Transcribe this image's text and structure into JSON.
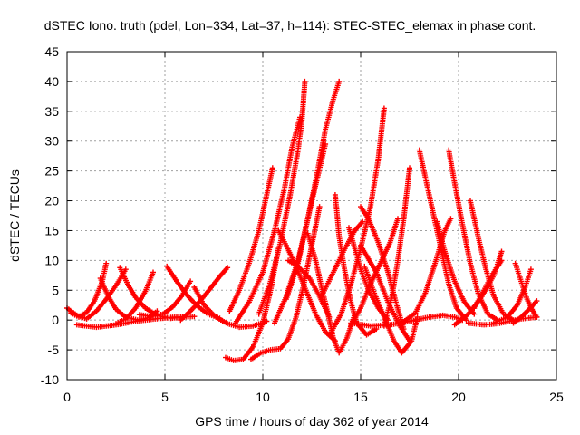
{
  "chart_data": {
    "type": "scatter",
    "title": "dSTEC Iono. truth (pdel, Lon=334, Lat=37, h=114): STEC-STEC_elemax in phase cont.",
    "xlabel": "GPS time / hours of day 362 of year 2014",
    "ylabel": "dSTEC  / TECUs",
    "xlim": [
      0,
      25
    ],
    "ylim": [
      -10,
      45
    ],
    "x_ticks": [
      "0",
      "5",
      "10",
      "15",
      "20",
      "25"
    ],
    "y_ticks": [
      "-10",
      "-5",
      "0",
      "5",
      "10",
      "15",
      "20",
      "25",
      "30",
      "35",
      "40",
      "45"
    ],
    "grid": true,
    "marker": "+",
    "color": "#ff0000",
    "series": [
      {
        "values": [
          [
            0.0,
            2.0
          ],
          [
            0.5,
            0.8
          ],
          [
            1.0,
            0.2
          ],
          [
            1.5,
            1.5
          ],
          [
            2.0,
            3.5
          ],
          [
            2.5,
            5.8
          ],
          [
            3.0,
            8.5
          ]
        ]
      },
      {
        "values": [
          [
            0.2,
            1.2
          ],
          [
            0.6,
            0.5
          ],
          [
            1.0,
            1.3
          ],
          [
            1.4,
            3.2
          ],
          [
            1.8,
            6.5
          ],
          [
            2.0,
            9.5
          ]
        ]
      },
      {
        "values": [
          [
            1.7,
            7.0
          ],
          [
            2.1,
            4.0
          ],
          [
            2.5,
            1.8
          ],
          [
            3.0,
            0.5
          ],
          [
            3.6,
            0.0
          ],
          [
            4.2,
            0.4
          ],
          [
            4.6,
            1.5
          ]
        ]
      },
      {
        "values": [
          [
            2.7,
            8.8
          ],
          [
            3.1,
            6.0
          ],
          [
            3.5,
            3.8
          ],
          [
            4.0,
            2.0
          ],
          [
            4.6,
            0.8
          ],
          [
            5.3,
            0.3
          ],
          [
            6.0,
            0.5
          ]
        ]
      },
      {
        "values": [
          [
            2.5,
            -0.6
          ],
          [
            3.0,
            0.2
          ],
          [
            3.5,
            2.0
          ],
          [
            4.0,
            4.8
          ],
          [
            4.4,
            8.0
          ]
        ]
      },
      {
        "values": [
          [
            3.7,
            0.9
          ],
          [
            4.3,
            0.6
          ],
          [
            4.9,
            1.0
          ],
          [
            5.4,
            2.2
          ],
          [
            5.9,
            4.2
          ],
          [
            6.3,
            6.5
          ]
        ]
      },
      {
        "values": [
          [
            5.1,
            9.0
          ],
          [
            5.6,
            6.5
          ],
          [
            6.1,
            4.3
          ],
          [
            6.6,
            2.5
          ],
          [
            7.2,
            1.0
          ],
          [
            7.8,
            0.3
          ]
        ]
      },
      {
        "values": [
          [
            5.8,
            0.0
          ],
          [
            6.3,
            1.5
          ],
          [
            6.8,
            3.2
          ],
          [
            7.3,
            5.2
          ],
          [
            7.8,
            7.3
          ],
          [
            8.2,
            8.8
          ]
        ]
      },
      {
        "values": [
          [
            0.5,
            -0.8
          ],
          [
            1.5,
            -1.2
          ],
          [
            2.5,
            -0.8
          ],
          [
            3.5,
            -0.2
          ],
          [
            4.5,
            0.2
          ],
          [
            5.5,
            0.5
          ],
          [
            6.5,
            0.6
          ]
        ]
      },
      {
        "values": [
          [
            6.5,
            5.5
          ],
          [
            7.0,
            2.5
          ],
          [
            7.6,
            0.5
          ],
          [
            8.2,
            -0.6
          ],
          [
            8.8,
            -1.2
          ],
          [
            9.5,
            -1.0
          ],
          [
            10.2,
            -0.2
          ]
        ]
      },
      {
        "values": [
          [
            8.1,
            -6.3
          ],
          [
            8.5,
            -6.8
          ],
          [
            9.0,
            -6.6
          ],
          [
            9.5,
            -4.5
          ],
          [
            10.0,
            -0.5
          ],
          [
            10.4,
            5.0
          ],
          [
            10.8,
            12.0
          ]
        ]
      },
      {
        "values": [
          [
            9.4,
            -6.6
          ],
          [
            9.9,
            -5.5
          ],
          [
            10.4,
            -5.0
          ],
          [
            10.9,
            -4.8
          ],
          [
            11.3,
            -3.2
          ],
          [
            11.7,
            0.5
          ],
          [
            12.1,
            6.0
          ],
          [
            12.5,
            12.5
          ],
          [
            12.9,
            19.0
          ]
        ]
      },
      {
        "values": [
          [
            8.3,
            1.5
          ],
          [
            8.8,
            5.0
          ],
          [
            9.3,
            9.5
          ],
          [
            9.8,
            15.0
          ],
          [
            10.2,
            21.0
          ],
          [
            10.5,
            25.5
          ]
        ]
      },
      {
        "values": [
          [
            8.6,
            -0.5
          ],
          [
            9.3,
            3.0
          ],
          [
            10.0,
            8.0
          ],
          [
            10.6,
            15.0
          ],
          [
            11.1,
            22.0
          ],
          [
            11.5,
            29.0
          ],
          [
            11.9,
            34.0
          ]
        ]
      },
      {
        "values": [
          [
            9.8,
            1.0
          ],
          [
            10.4,
            6.5
          ],
          [
            10.9,
            13.0
          ],
          [
            11.4,
            21.0
          ],
          [
            11.8,
            28.5
          ],
          [
            12.0,
            33.5
          ],
          [
            12.15,
            40.0
          ]
        ]
      },
      {
        "values": [
          [
            10.6,
            -0.5
          ],
          [
            11.2,
            4.0
          ],
          [
            11.8,
            10.0
          ],
          [
            12.3,
            17.0
          ],
          [
            12.8,
            24.0
          ],
          [
            13.2,
            29.5
          ]
        ]
      },
      {
        "values": [
          [
            11.2,
            3.5
          ],
          [
            11.8,
            9.5
          ],
          [
            12.3,
            17.0
          ],
          [
            12.8,
            25.0
          ],
          [
            13.2,
            32.0
          ],
          [
            13.6,
            37.0
          ],
          [
            13.9,
            40.0
          ]
        ]
      },
      {
        "values": [
          [
            10.8,
            15.0
          ],
          [
            11.2,
            12.5
          ],
          [
            11.7,
            9.0
          ],
          [
            12.2,
            5.0
          ],
          [
            12.7,
            1.0
          ],
          [
            13.2,
            -2.0
          ],
          [
            13.7,
            -3.5
          ]
        ]
      },
      {
        "values": [
          [
            12.3,
            14.5
          ],
          [
            12.7,
            10.0
          ],
          [
            13.0,
            5.5
          ],
          [
            13.3,
            1.5
          ],
          [
            13.6,
            -3.0
          ],
          [
            13.9,
            -5.5
          ],
          [
            14.3,
            -3.0
          ],
          [
            14.7,
            1.0
          ]
        ]
      },
      {
        "values": [
          [
            11.3,
            10.0
          ],
          [
            11.8,
            9.0
          ],
          [
            12.4,
            7.0
          ],
          [
            12.9,
            4.0
          ],
          [
            13.4,
            0.5
          ]
        ]
      },
      {
        "values": [
          [
            13.7,
            21.0
          ],
          [
            13.9,
            14.0
          ],
          [
            14.2,
            8.0
          ],
          [
            14.5,
            3.0
          ],
          [
            14.8,
            -0.5
          ],
          [
            15.3,
            -2.5
          ],
          [
            15.8,
            -1.5
          ]
        ]
      },
      {
        "values": [
          [
            13.0,
            4.0
          ],
          [
            13.6,
            8.0
          ],
          [
            14.2,
            12.0
          ],
          [
            14.7,
            15.0
          ],
          [
            15.1,
            16.5
          ]
        ]
      },
      {
        "values": [
          [
            14.4,
            15.5
          ],
          [
            14.7,
            12.0
          ],
          [
            15.0,
            8.5
          ],
          [
            15.4,
            5.0
          ],
          [
            15.9,
            2.0
          ],
          [
            16.4,
            0.0
          ]
        ]
      },
      {
        "values": [
          [
            15.0,
            19.0
          ],
          [
            15.4,
            17.0
          ],
          [
            15.9,
            13.0
          ],
          [
            16.4,
            8.0
          ],
          [
            16.8,
            3.0
          ],
          [
            17.2,
            -1.5
          ]
        ]
      },
      {
        "values": [
          [
            13.5,
            -2.0
          ],
          [
            14.0,
            1.0
          ],
          [
            14.5,
            6.0
          ],
          [
            15.0,
            12.0
          ],
          [
            15.5,
            19.0
          ],
          [
            15.9,
            27.0
          ],
          [
            16.2,
            35.5
          ]
        ]
      },
      {
        "values": [
          [
            14.5,
            -1.0
          ],
          [
            15.0,
            2.0
          ],
          [
            15.5,
            6.0
          ],
          [
            16.0,
            9.5
          ],
          [
            16.5,
            13.0
          ],
          [
            16.9,
            17.0
          ]
        ]
      },
      {
        "values": [
          [
            15.0,
            12.5
          ],
          [
            15.8,
            8.0
          ],
          [
            16.4,
            3.0
          ],
          [
            17.0,
            -1.0
          ],
          [
            17.5,
            -3.5
          ]
        ]
      },
      {
        "values": [
          [
            15.2,
            9.0
          ],
          [
            15.7,
            4.5
          ],
          [
            16.2,
            0.5
          ],
          [
            16.7,
            -3.5
          ],
          [
            17.1,
            -5.5
          ],
          [
            17.6,
            -3.5
          ],
          [
            17.9,
            0.5
          ]
        ]
      },
      {
        "values": [
          [
            16.2,
            -1.0
          ],
          [
            16.6,
            4.0
          ],
          [
            16.9,
            10.0
          ],
          [
            17.2,
            17.0
          ],
          [
            17.5,
            25.5
          ]
        ]
      },
      {
        "values": [
          [
            14.5,
            -0.5
          ],
          [
            15.5,
            -1.0
          ],
          [
            16.5,
            -0.8
          ],
          [
            17.5,
            -0.2
          ],
          [
            18.5,
            0.5
          ],
          [
            19.2,
            0.8
          ],
          [
            19.8,
            0.5
          ],
          [
            20.2,
            0.0
          ]
        ]
      },
      {
        "values": [
          [
            17.1,
            -0.5
          ],
          [
            17.8,
            1.2
          ],
          [
            18.3,
            4.5
          ],
          [
            18.8,
            9.5
          ],
          [
            19.3,
            15.0
          ],
          [
            19.6,
            17.0
          ]
        ]
      },
      {
        "values": [
          [
            18.0,
            28.5
          ],
          [
            18.3,
            24.0
          ],
          [
            18.7,
            18.0
          ],
          [
            19.1,
            12.0
          ],
          [
            19.5,
            6.0
          ],
          [
            19.9,
            2.0
          ],
          [
            20.4,
            0.0
          ]
        ]
      },
      {
        "values": [
          [
            19.5,
            28.5
          ],
          [
            19.8,
            23.0
          ],
          [
            20.2,
            16.0
          ],
          [
            20.6,
            9.5
          ],
          [
            21.0,
            4.5
          ],
          [
            21.5,
            1.0
          ],
          [
            22.0,
            0.0
          ]
        ]
      },
      {
        "values": [
          [
            18.9,
            16.5
          ],
          [
            19.3,
            11.5
          ],
          [
            19.8,
            6.5
          ],
          [
            20.3,
            3.0
          ],
          [
            20.8,
            1.0
          ]
        ]
      },
      {
        "values": [
          [
            20.6,
            20.0
          ],
          [
            21.0,
            14.0
          ],
          [
            21.4,
            8.5
          ],
          [
            21.8,
            4.0
          ],
          [
            22.3,
            1.0
          ],
          [
            22.8,
            0.0
          ]
        ]
      },
      {
        "values": [
          [
            19.8,
            -0.8
          ],
          [
            20.5,
            1.0
          ],
          [
            21.2,
            4.0
          ],
          [
            21.8,
            7.5
          ],
          [
            22.2,
            11.5
          ]
        ]
      },
      {
        "values": [
          [
            20.8,
            2.0
          ],
          [
            21.3,
            5.0
          ],
          [
            21.7,
            7.5
          ],
          [
            22.0,
            9.0
          ],
          [
            22.2,
            10.0
          ]
        ]
      },
      {
        "values": [
          [
            22.9,
            9.5
          ],
          [
            23.2,
            6.5
          ],
          [
            23.5,
            3.5
          ],
          [
            23.8,
            1.5
          ],
          [
            24.0,
            0.5
          ]
        ]
      },
      {
        "values": [
          [
            21.8,
            -0.5
          ],
          [
            22.5,
            0.5
          ],
          [
            23.0,
            2.5
          ],
          [
            23.4,
            5.5
          ],
          [
            23.7,
            8.5
          ]
        ]
      },
      {
        "values": [
          [
            22.8,
            -0.5
          ],
          [
            23.2,
            0.5
          ],
          [
            23.6,
            1.8
          ],
          [
            24.0,
            3.2
          ]
        ]
      },
      {
        "values": [
          [
            20.5,
            -0.5
          ],
          [
            21.3,
            -0.8
          ],
          [
            22.0,
            -0.6
          ],
          [
            22.6,
            -0.2
          ],
          [
            23.2,
            0.2
          ],
          [
            24.0,
            0.5
          ]
        ]
      }
    ]
  }
}
